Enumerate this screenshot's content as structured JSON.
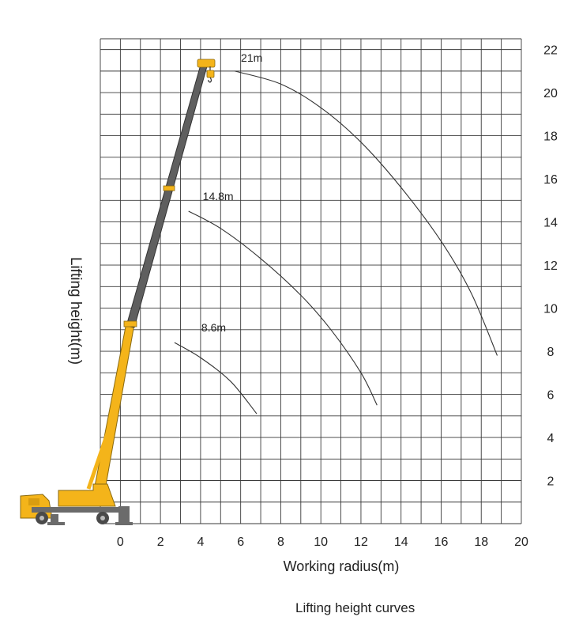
{
  "chart_data": {
    "type": "line",
    "xlabel": "Working radius(m)",
    "ylabel": "Lifting height(m)",
    "caption": "Lifting height curves",
    "xlim": [
      -1,
      20
    ],
    "ylim": [
      0,
      22.5
    ],
    "x_ticks": [
      0,
      2,
      4,
      6,
      8,
      10,
      12,
      14,
      16,
      18,
      20
    ],
    "y_ticks": [
      2,
      4,
      6,
      8,
      10,
      12,
      14,
      16,
      18,
      20,
      22
    ],
    "grid": true,
    "grid_step_x": 1,
    "grid_step_y": 1,
    "series": [
      {
        "name": "21m",
        "values": [
          [
            5.7,
            21.0
          ],
          [
            8.0,
            20.4
          ],
          [
            10.0,
            19.3
          ],
          [
            12.0,
            17.7
          ],
          [
            14.0,
            15.6
          ],
          [
            16.0,
            13.1
          ],
          [
            17.5,
            10.7
          ],
          [
            18.8,
            7.8
          ]
        ]
      },
      {
        "name": "14.8m",
        "values": [
          [
            3.4,
            14.5
          ],
          [
            5.0,
            13.7
          ],
          [
            7.0,
            12.3
          ],
          [
            9.0,
            10.6
          ],
          [
            10.5,
            9.0
          ],
          [
            12.0,
            7.0
          ],
          [
            12.8,
            5.5
          ]
        ]
      },
      {
        "name": "8.6m",
        "values": [
          [
            2.7,
            8.4
          ],
          [
            4.0,
            7.7
          ],
          [
            5.5,
            6.6
          ],
          [
            6.8,
            5.1
          ]
        ]
      }
    ]
  },
  "colors": {
    "grid": "#3a3a3a",
    "curve": "#333333",
    "boom_outer": "#f4b41a",
    "boom_inner": "#5f5f5f",
    "chassis": "#6b6b6b",
    "truck_body": "#f4b41a"
  },
  "crane_icon": "truck-crane-illustration"
}
